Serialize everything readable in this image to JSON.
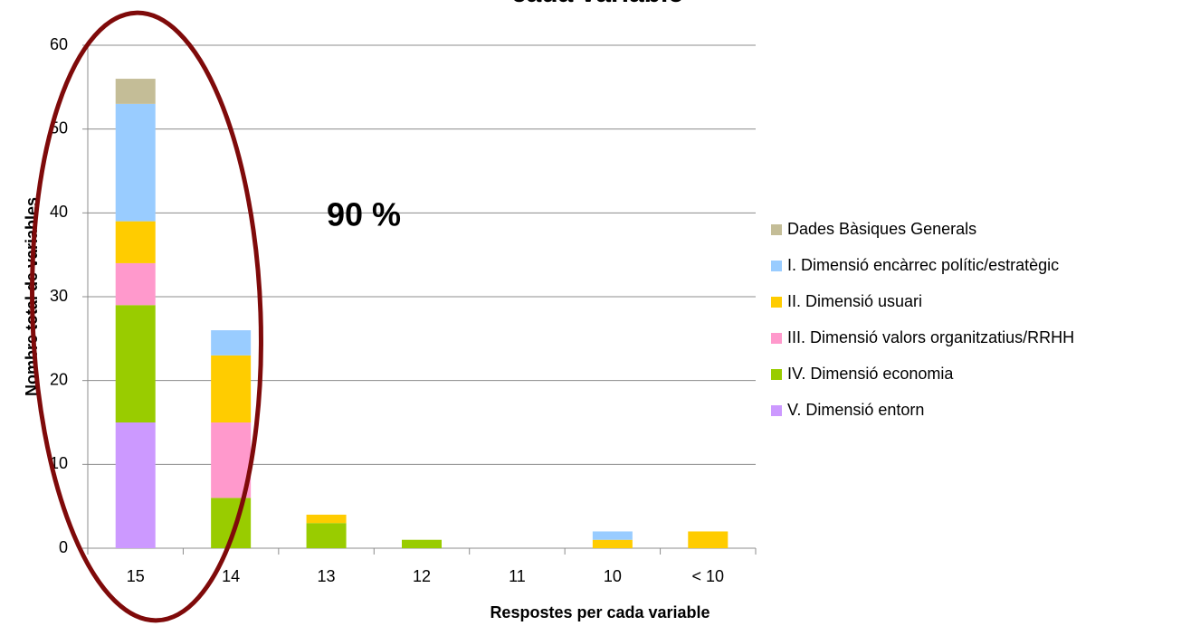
{
  "chart_data": {
    "type": "stacked-bar",
    "title": "cada variable",
    "xlabel": "Respostes per cada variable",
    "ylabel": "Nombre total de variables",
    "annotation": "90 %",
    "categories": [
      "15",
      "14",
      "13",
      "12",
      "11",
      "10",
      "< 10"
    ],
    "series": [
      {
        "name": "Dades Bàsiques Generals",
        "color": "#c4bd97",
        "values": [
          3,
          0,
          0,
          0,
          0,
          0,
          0
        ]
      },
      {
        "name": "I. Dimensió encàrrec polític/estratègic",
        "color": "#99ccff",
        "values": [
          14,
          3,
          0,
          0,
          0,
          1,
          0
        ]
      },
      {
        "name": "II. Dimensió usuari",
        "color": "#ffcc00",
        "values": [
          5,
          8,
          1,
          0,
          0,
          1,
          2
        ]
      },
      {
        "name": "III. Dimensió valors organitzatius/RRHH",
        "color": "#ff99cc",
        "values": [
          5,
          9,
          0,
          0,
          0,
          0,
          0
        ]
      },
      {
        "name": "IV. Dimensió economia",
        "color": "#99cc00",
        "values": [
          14,
          6,
          3,
          1,
          0,
          0,
          0
        ]
      },
      {
        "name": "V. Dimensió entorn",
        "color": "#cc99ff",
        "values": [
          15,
          0,
          0,
          0,
          0,
          0,
          0
        ]
      }
    ],
    "ylim": [
      0,
      60
    ],
    "yticks": [
      0,
      10,
      20,
      30,
      40,
      50,
      60
    ],
    "grid": true
  }
}
